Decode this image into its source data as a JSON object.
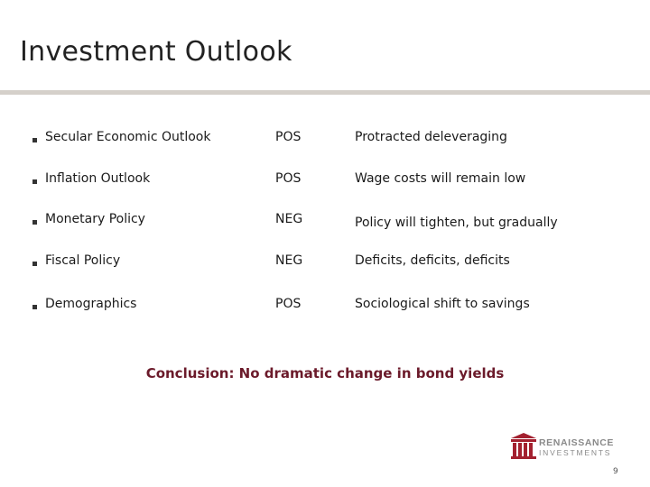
{
  "slide": {
    "title": "Investment Outlook",
    "rows": [
      {
        "topic": "Secular Economic Outlook",
        "rating": "POS",
        "comment": "Protracted deleveraging"
      },
      {
        "topic": "Inflation Outlook",
        "rating": "POS",
        "comment": "Wage costs will remain low"
      },
      {
        "topic": "Monetary Policy",
        "rating": "NEG",
        "comment": "Policy will tighten, but gradually"
      },
      {
        "topic": "Fiscal Policy",
        "rating": "NEG",
        "comment": "Deficits, deficits, deficits"
      },
      {
        "topic": "Demographics",
        "rating": "POS",
        "comment": "Sociological shift to savings"
      }
    ],
    "conclusion": "Conclusion:  No dramatic change in bond yields",
    "page_number": "9"
  },
  "logo": {
    "line1": "RENAISSANCE",
    "line2": "INVESTMENTS"
  },
  "colors": {
    "header_rule": "#d5d0ca",
    "conclusion": "#6b1a2a",
    "logo_red": "#a3202f",
    "logo_gray": "#8a8a8a"
  }
}
